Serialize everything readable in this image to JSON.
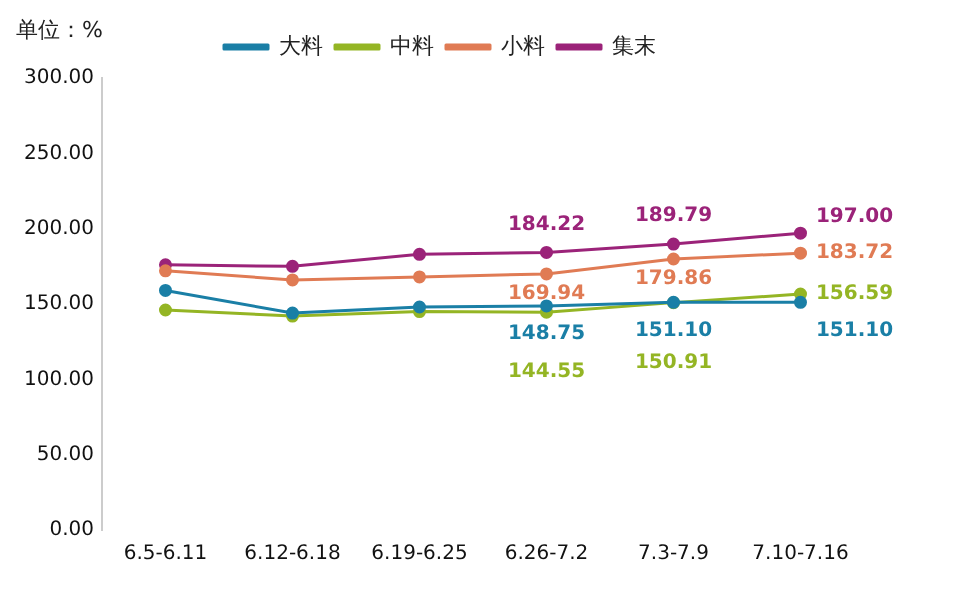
{
  "chart_data": {
    "type": "line",
    "ylabel": "单位：%",
    "categories": [
      "6.5-6.11",
      "6.12-6.18",
      "6.19-6.25",
      "6.26-7.2",
      "7.3-7.9",
      "7.10-7.16"
    ],
    "series": [
      {
        "name": "大料",
        "color": "#1a7fa6",
        "values": [
          159,
          144,
          148,
          148.75,
          151.1,
          151.1
        ],
        "value_labels": [
          null,
          null,
          null,
          "148.75",
          "151.10",
          "151.10"
        ]
      },
      {
        "name": "中料",
        "color": "#94b524",
        "values": [
          146,
          142,
          145,
          144.55,
          150.91,
          156.59
        ],
        "value_labels": [
          null,
          null,
          null,
          "144.55",
          "150.91",
          "156.59"
        ]
      },
      {
        "name": "小料",
        "color": "#e07b54",
        "values": [
          172,
          166,
          168,
          169.94,
          179.86,
          183.72
        ],
        "value_labels": [
          null,
          null,
          null,
          "169.94",
          "179.86",
          "183.72"
        ]
      },
      {
        "name": "集末",
        "color": "#9b2379",
        "values": [
          176,
          175,
          183,
          184.22,
          189.79,
          197.0
        ],
        "value_labels": [
          null,
          null,
          null,
          "184.22",
          "189.79",
          "197.00"
        ]
      }
    ],
    "ylim": [
      0,
      300
    ],
    "yticks": [
      {
        "value": 0,
        "label": "0.00"
      },
      {
        "value": 50,
        "label": "50.00"
      },
      {
        "value": 100,
        "label": "100.00"
      },
      {
        "value": 150,
        "label": "150.00"
      },
      {
        "value": 200,
        "label": "200.00"
      },
      {
        "value": 250,
        "label": "250.00"
      },
      {
        "value": 300,
        "label": "300.00"
      }
    ],
    "grid": false,
    "legend": "top",
    "marker": "circle",
    "line_style": "solid"
  }
}
